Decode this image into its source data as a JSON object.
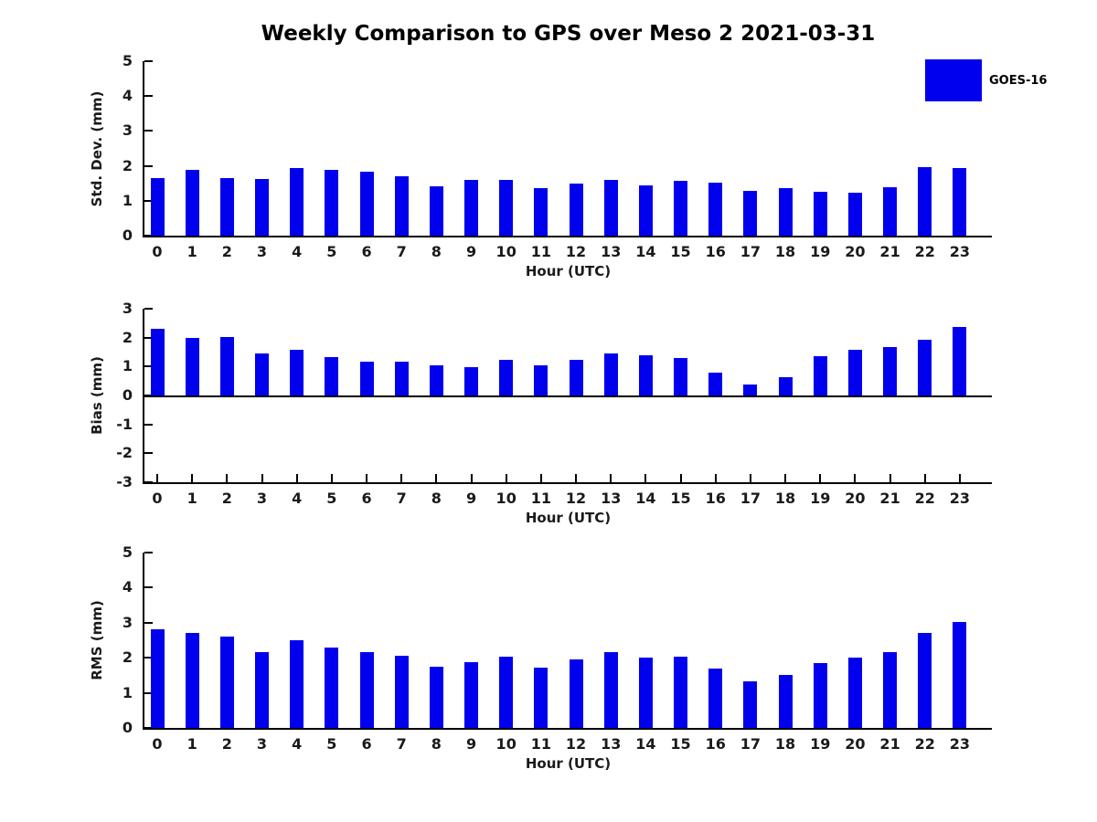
{
  "figure": {
    "title": "Weekly Comparison to GPS over Meso 2 2021-03-31",
    "background_color": "#ffffff",
    "bar_color": "#0000ee",
    "axis_color": "#000000"
  },
  "legend": {
    "label": "GOES-16",
    "swatch_color": "#0000ee",
    "position": "upper-right"
  },
  "chart_data": [
    {
      "type": "bar",
      "ylabel": "Std. Dev. (mm)",
      "xlabel": "Hour (UTC)",
      "categories": [
        "0",
        "1",
        "2",
        "3",
        "4",
        "5",
        "6",
        "7",
        "8",
        "9",
        "10",
        "11",
        "12",
        "13",
        "14",
        "15",
        "16",
        "17",
        "18",
        "19",
        "20",
        "21",
        "22",
        "23"
      ],
      "values": [
        1.65,
        1.88,
        1.65,
        1.62,
        1.93,
        1.88,
        1.82,
        1.7,
        1.42,
        1.6,
        1.6,
        1.35,
        1.48,
        1.6,
        1.45,
        1.57,
        1.52,
        1.28,
        1.37,
        1.26,
        1.23,
        1.4,
        1.97,
        1.94
      ],
      "ylim": [
        0,
        5
      ],
      "yticks": [
        0,
        1,
        2,
        3,
        4,
        5
      ],
      "grid": false,
      "series_name": "GOES-16"
    },
    {
      "type": "bar",
      "ylabel": "Bias (mm)",
      "xlabel": "Hour (UTC)",
      "categories": [
        "0",
        "1",
        "2",
        "3",
        "4",
        "5",
        "6",
        "7",
        "8",
        "9",
        "10",
        "11",
        "12",
        "13",
        "14",
        "15",
        "16",
        "17",
        "18",
        "19",
        "20",
        "21",
        "22",
        "23"
      ],
      "values": [
        2.3,
        1.98,
        2.02,
        1.45,
        1.58,
        1.33,
        1.17,
        1.17,
        1.04,
        0.98,
        1.24,
        1.05,
        1.23,
        1.45,
        1.4,
        1.3,
        0.78,
        0.37,
        0.64,
        1.35,
        1.58,
        1.67,
        1.93,
        2.36
      ],
      "ylim": [
        -3,
        3
      ],
      "yticks": [
        -3,
        -2,
        -1,
        0,
        1,
        2,
        3
      ],
      "grid": false,
      "series_name": "GOES-16"
    },
    {
      "type": "bar",
      "ylabel": "RMS (mm)",
      "xlabel": "Hour (UTC)",
      "categories": [
        "0",
        "1",
        "2",
        "3",
        "4",
        "5",
        "6",
        "7",
        "8",
        "9",
        "10",
        "11",
        "12",
        "13",
        "14",
        "15",
        "16",
        "17",
        "18",
        "19",
        "20",
        "21",
        "22",
        "23"
      ],
      "values": [
        2.81,
        2.72,
        2.6,
        2.17,
        2.49,
        2.28,
        2.16,
        2.05,
        1.75,
        1.87,
        2.03,
        1.72,
        1.96,
        2.16,
        2.01,
        2.03,
        1.69,
        1.33,
        1.51,
        1.85,
        2.01,
        2.16,
        2.71,
        3.03
      ],
      "ylim": [
        0,
        5
      ],
      "yticks": [
        0,
        1,
        2,
        3,
        4,
        5
      ],
      "grid": false,
      "series_name": "GOES-16"
    }
  ]
}
